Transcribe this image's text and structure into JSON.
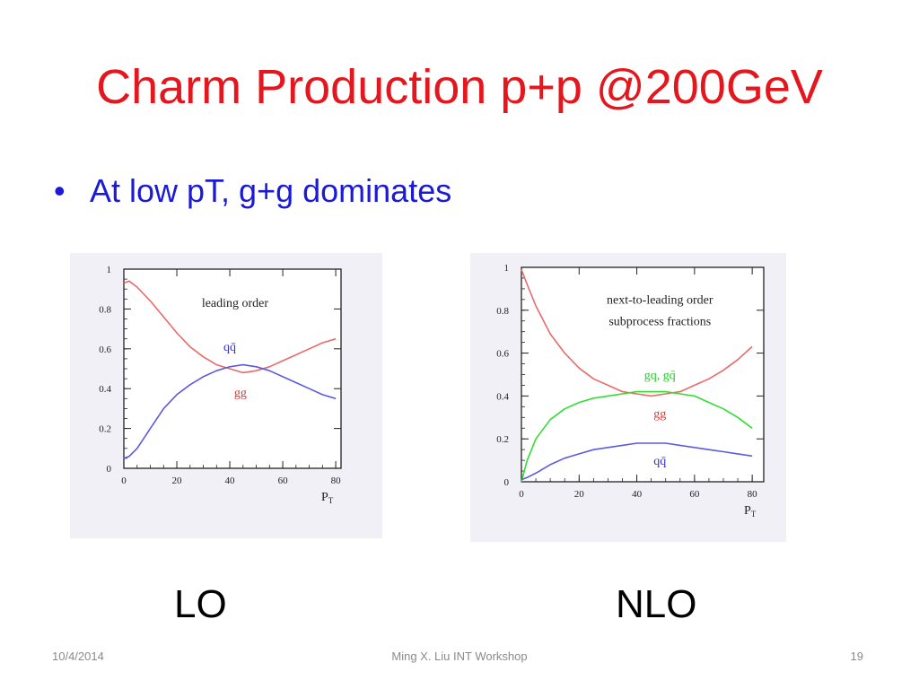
{
  "slide": {
    "title": "Charm Production p+p @200GeV",
    "bullet_symbol": "•",
    "bullet_text": "At low pT, g+g dominates",
    "caption_left": "LO",
    "caption_right": "NLO"
  },
  "footer": {
    "date": "10/4/2014",
    "author": "Ming X. Liu  INT Workshop",
    "page": "19"
  },
  "colors": {
    "title": "#e3171d",
    "bullet": "#1b1bd6",
    "gg_curve": "#e86a6a",
    "qq_curve": "#5b5be0",
    "gq_curve": "#33dd33"
  },
  "chart_data": [
    {
      "type": "line",
      "xlabel": "PT",
      "xlabel_main": "P",
      "xlabel_sub": "T",
      "ylabel": "",
      "xlim": [
        0,
        82
      ],
      "ylim": [
        0,
        1.0
      ],
      "xticks": [
        0,
        20,
        40,
        60,
        80
      ],
      "yticks": [
        0,
        0.2,
        0.4,
        0.6,
        0.8,
        1
      ],
      "ytick_labels": [
        "0",
        "0.2",
        "0.4",
        "0.6",
        "0.8",
        "1"
      ],
      "xtick_labels": [
        "0",
        "20",
        "40",
        "60",
        "80"
      ],
      "annotations": [
        {
          "text": "leading order",
          "x": 42,
          "y": 0.81,
          "color": "#222222"
        },
        {
          "text": "qq̄",
          "x": 40,
          "y": 0.59,
          "color": "#3333cc"
        },
        {
          "text": "gg",
          "x": 44,
          "y": 0.36,
          "color": "#dd3333"
        }
      ],
      "series": [
        {
          "name": "gg",
          "color": "#e86a6a",
          "x": [
            0,
            2,
            5,
            10,
            15,
            20,
            25,
            30,
            35,
            40,
            45,
            50,
            55,
            60,
            65,
            70,
            75,
            80
          ],
          "y": [
            0.93,
            0.94,
            0.91,
            0.84,
            0.76,
            0.68,
            0.61,
            0.56,
            0.52,
            0.5,
            0.48,
            0.49,
            0.51,
            0.54,
            0.57,
            0.6,
            0.63,
            0.65
          ]
        },
        {
          "name": "qq̄",
          "color": "#5b5be0",
          "x": [
            0,
            2,
            5,
            10,
            15,
            20,
            25,
            30,
            35,
            40,
            45,
            50,
            55,
            60,
            65,
            70,
            75,
            80
          ],
          "y": [
            0.05,
            0.06,
            0.1,
            0.2,
            0.3,
            0.37,
            0.42,
            0.46,
            0.49,
            0.51,
            0.52,
            0.51,
            0.49,
            0.46,
            0.43,
            0.4,
            0.37,
            0.35
          ]
        }
      ]
    },
    {
      "type": "line",
      "xlabel": "PT",
      "xlabel_main": "P",
      "xlabel_sub": "T",
      "ylabel": "",
      "xlim": [
        0,
        84
      ],
      "ylim": [
        0,
        1.0
      ],
      "xticks": [
        0,
        20,
        40,
        60,
        80
      ],
      "yticks": [
        0,
        0.2,
        0.4,
        0.6,
        0.8,
        1
      ],
      "ytick_labels": [
        "0",
        "0.2",
        "0.4",
        "0.6",
        "0.8",
        "1"
      ],
      "xtick_labels": [
        "0",
        "20",
        "40",
        "60",
        "80"
      ],
      "annotations": [
        {
          "text": "next-to-leading order",
          "x": 48,
          "y": 0.83,
          "color": "#222222"
        },
        {
          "text": "subprocess fractions",
          "x": 48,
          "y": 0.73,
          "color": "#222222"
        },
        {
          "text": "gq, gq̄",
          "x": 48,
          "y": 0.48,
          "color": "#22cc22"
        },
        {
          "text": "gg",
          "x": 48,
          "y": 0.3,
          "color": "#dd3333"
        },
        {
          "text": "qq̄",
          "x": 48,
          "y": 0.08,
          "color": "#3333cc"
        }
      ],
      "series": [
        {
          "name": "gg",
          "color": "#e86a6a",
          "x": [
            0,
            2,
            5,
            10,
            15,
            20,
            25,
            30,
            35,
            40,
            45,
            50,
            55,
            60,
            65,
            70,
            75,
            80
          ],
          "y": [
            0.99,
            0.92,
            0.82,
            0.69,
            0.6,
            0.53,
            0.48,
            0.45,
            0.42,
            0.41,
            0.4,
            0.41,
            0.42,
            0.45,
            0.48,
            0.52,
            0.57,
            0.63
          ]
        },
        {
          "name": "gq, gq̄",
          "color": "#33dd33",
          "x": [
            0,
            2,
            5,
            10,
            15,
            20,
            25,
            30,
            35,
            40,
            45,
            50,
            55,
            60,
            65,
            70,
            75,
            80
          ],
          "y": [
            0.0,
            0.1,
            0.2,
            0.29,
            0.34,
            0.37,
            0.39,
            0.4,
            0.41,
            0.42,
            0.42,
            0.42,
            0.41,
            0.4,
            0.37,
            0.34,
            0.3,
            0.25
          ]
        },
        {
          "name": "qq̄",
          "color": "#5b5be0",
          "x": [
            0,
            2,
            5,
            10,
            15,
            20,
            25,
            30,
            35,
            40,
            45,
            50,
            55,
            60,
            65,
            70,
            75,
            80
          ],
          "y": [
            0.01,
            0.02,
            0.04,
            0.08,
            0.11,
            0.13,
            0.15,
            0.16,
            0.17,
            0.18,
            0.18,
            0.18,
            0.17,
            0.16,
            0.15,
            0.14,
            0.13,
            0.12
          ]
        }
      ]
    }
  ]
}
